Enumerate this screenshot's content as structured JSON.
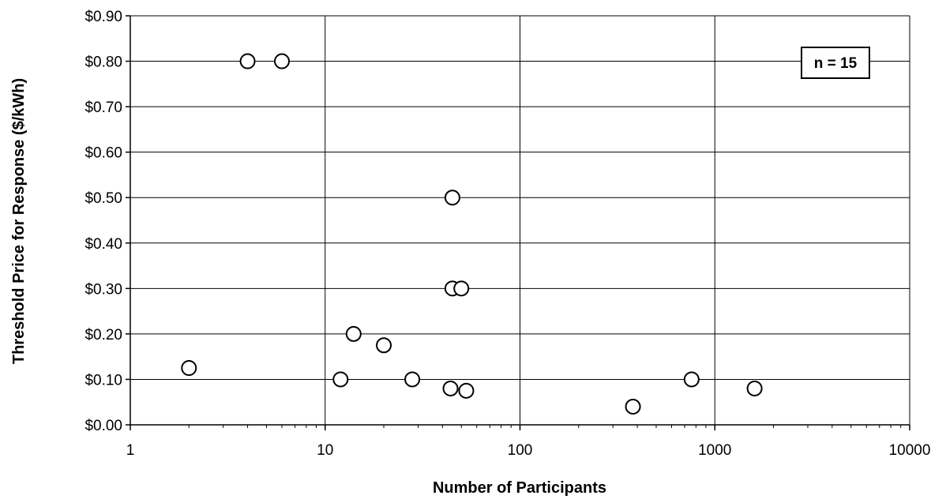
{
  "chart_data": {
    "type": "scatter",
    "title": "",
    "xlabel": "Number of Participants",
    "ylabel": "Threshold Price for Response ($/kWh)",
    "x_scale": "log",
    "xlim": [
      1,
      10000
    ],
    "ylim": [
      0,
      0.9
    ],
    "x_ticks": [
      1,
      10,
      100,
      1000,
      10000
    ],
    "x_tick_labels": [
      "1",
      "10",
      "100",
      "1000",
      "10000"
    ],
    "y_ticks": [
      0,
      0.1,
      0.2,
      0.3,
      0.4,
      0.5,
      0.6,
      0.7,
      0.8,
      0.9
    ],
    "y_tick_labels": [
      "$0.00",
      "$0.10",
      "$0.20",
      "$0.30",
      "$0.40",
      "$0.50",
      "$0.60",
      "$0.70",
      "$0.80",
      "$0.90"
    ],
    "grid": true,
    "marker": "open-circle",
    "annotation": "n = 15",
    "points": [
      {
        "x": 2,
        "y": 0.125
      },
      {
        "x": 4,
        "y": 0.8
      },
      {
        "x": 6,
        "y": 0.8
      },
      {
        "x": 12,
        "y": 0.1
      },
      {
        "x": 14,
        "y": 0.2
      },
      {
        "x": 20,
        "y": 0.175
      },
      {
        "x": 28,
        "y": 0.1
      },
      {
        "x": 44,
        "y": 0.08
      },
      {
        "x": 45,
        "y": 0.5
      },
      {
        "x": 45,
        "y": 0.3
      },
      {
        "x": 50,
        "y": 0.3
      },
      {
        "x": 53,
        "y": 0.075
      },
      {
        "x": 380,
        "y": 0.04
      },
      {
        "x": 760,
        "y": 0.1
      },
      {
        "x": 1600,
        "y": 0.08
      }
    ]
  },
  "colors": {
    "background": "#ffffff",
    "axis": "#000000",
    "grid": "#000000",
    "marker_stroke": "#000000",
    "marker_fill": "#ffffff"
  }
}
